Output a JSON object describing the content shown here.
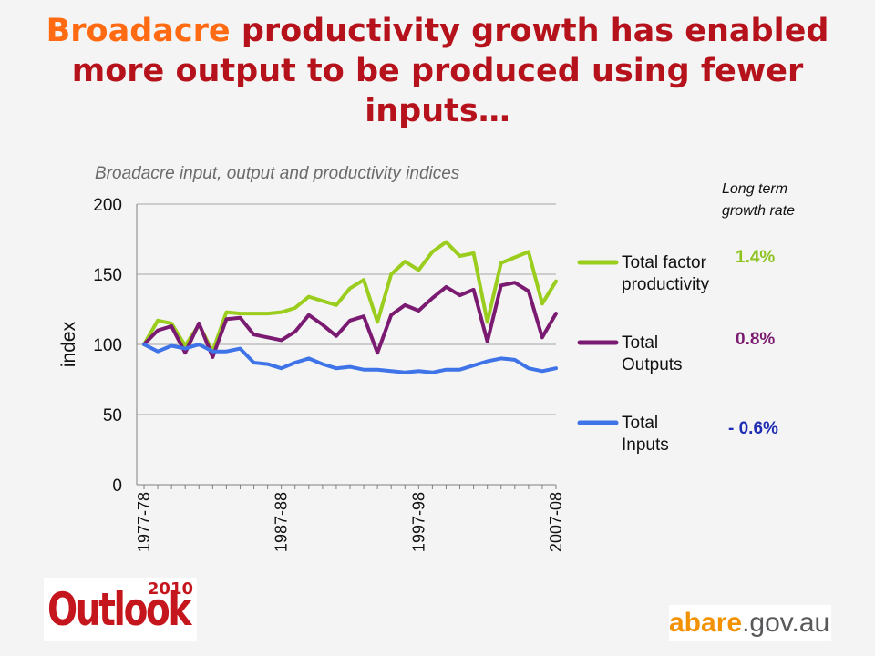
{
  "title": {
    "accent": "Broadacre",
    "rest": " productivity growth has enabled more output to be produced using fewer inputs…"
  },
  "growth_header": {
    "line1": "Long term",
    "line2": "growth rate"
  },
  "growth_rates": [
    {
      "value": "1.4%",
      "color": "#8dc21f"
    },
    {
      "value": "0.8%",
      "color": "#7a1a70"
    },
    {
      "value": "- 0.6%",
      "color": "#1f2db4"
    }
  ],
  "logos": {
    "outlook_word": "Outlook",
    "outlook_year": "2010",
    "abare_1": "abare",
    "abare_2": ".gov.au"
  },
  "chart_data": {
    "type": "line",
    "title": "Broadacre input, output and productivity indices",
    "ylabel": "index",
    "ylim": [
      0,
      200
    ],
    "yticks": [
      0,
      50,
      100,
      150,
      200
    ],
    "grid": true,
    "legend": "right",
    "x_tick_labels": [
      "1977-78",
      "1987-88",
      "1997-98",
      "2007-08"
    ],
    "x_tick_indices": [
      0,
      10,
      20,
      30
    ],
    "series": [
      {
        "name": "Total factor productivity",
        "color": "#9acd1d",
        "values": [
          100,
          117,
          115,
          99,
          114,
          95,
          123,
          122,
          122,
          122,
          123,
          126,
          134,
          131,
          128,
          140,
          146,
          116,
          150,
          159,
          153,
          166,
          173,
          163,
          165,
          116,
          158,
          162,
          166,
          129,
          145
        ]
      },
      {
        "name": "Total Outputs",
        "color": "#7a1a70",
        "values": [
          100,
          110,
          113,
          94,
          115,
          91,
          118,
          119,
          107,
          105,
          103,
          109,
          121,
          114,
          106,
          117,
          120,
          94,
          121,
          128,
          124,
          133,
          141,
          135,
          139,
          102,
          142,
          144,
          138,
          105,
          122
        ]
      },
      {
        "name": "Total Inputs",
        "color": "#3f74e8",
        "values": [
          100,
          95,
          99,
          97,
          100,
          95,
          95,
          97,
          87,
          86,
          83,
          87,
          90,
          86,
          83,
          84,
          82,
          82,
          81,
          80,
          81,
          80,
          82,
          82,
          85,
          88,
          90,
          89,
          83,
          81,
          83
        ]
      }
    ]
  }
}
